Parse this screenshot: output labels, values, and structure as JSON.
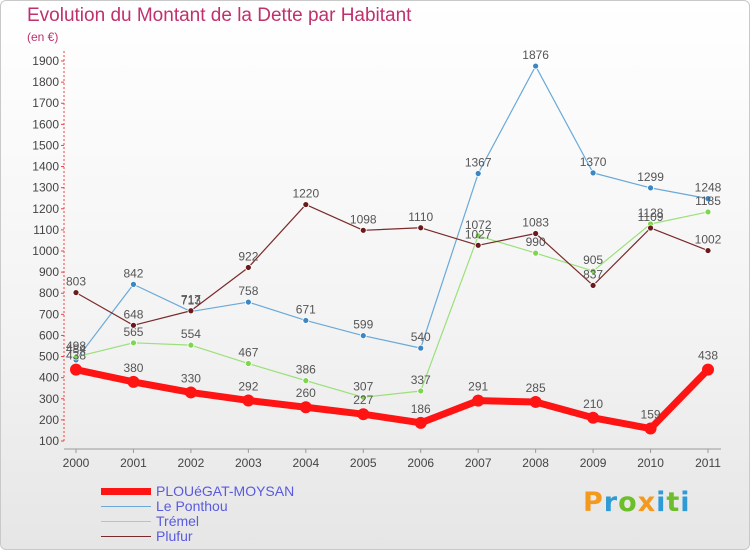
{
  "header": {
    "title": "Evolution du Montant de la Dette par Habitant",
    "unit": "(en €)"
  },
  "chart_data": {
    "type": "line",
    "title": "Evolution du Montant de la Dette par Habitant",
    "ylabel": "(en €)",
    "xlabel": "",
    "x": [
      "2000",
      "2001",
      "2002",
      "2003",
      "2004",
      "2005",
      "2006",
      "2007",
      "2008",
      "2009",
      "2010",
      "2011"
    ],
    "ylim": [
      100,
      1900
    ],
    "yticks": [
      100,
      200,
      300,
      400,
      500,
      600,
      700,
      800,
      900,
      1000,
      1100,
      1200,
      1300,
      1400,
      1500,
      1600,
      1700,
      1800,
      1900
    ],
    "grid": false,
    "legend": "bottom-left",
    "series": [
      {
        "name": "Le Ponthou",
        "color": "#6aa9d8",
        "marker": "#3b86c5",
        "width": 1.2,
        "values": [
          484,
          842,
          713,
          758,
          671,
          599,
          540,
          1367,
          1876,
          1370,
          1299,
          1248
        ]
      },
      {
        "name": "Trémel",
        "color": "#9be07a",
        "marker": "#7ed650",
        "width": 1.2,
        "values": [
          498,
          565,
          554,
          467,
          386,
          307,
          337,
          1072,
          990,
          905,
          1128,
          1185
        ]
      },
      {
        "name": "Plufur",
        "color": "#7a2a2a",
        "marker": "#6a1a1a",
        "width": 1.2,
        "values": [
          803,
          648,
          717,
          922,
          1220,
          1098,
          1110,
          1027,
          1083,
          837,
          1109,
          1002
        ]
      },
      {
        "name": "PLOUéGAT-MOYSAN",
        "color": "#ff1414",
        "marker": "#ff1414",
        "width": 7,
        "values": [
          438,
          380,
          330,
          292,
          260,
          227,
          186,
          291,
          285,
          210,
          159,
          438
        ]
      }
    ]
  },
  "logo": {
    "letters": [
      {
        "ch": "P",
        "color": "#f39a1e"
      },
      {
        "ch": "r",
        "color": "#2f9bd6"
      },
      {
        "ch": "o",
        "color": "#6cbf2a"
      },
      {
        "ch": "x",
        "color": "#f39a1e"
      },
      {
        "ch": "i",
        "color": "#2f9bd6"
      },
      {
        "ch": "t",
        "color": "#6cbf2a"
      },
      {
        "ch": "i",
        "color": "#2f9bd6"
      }
    ]
  }
}
